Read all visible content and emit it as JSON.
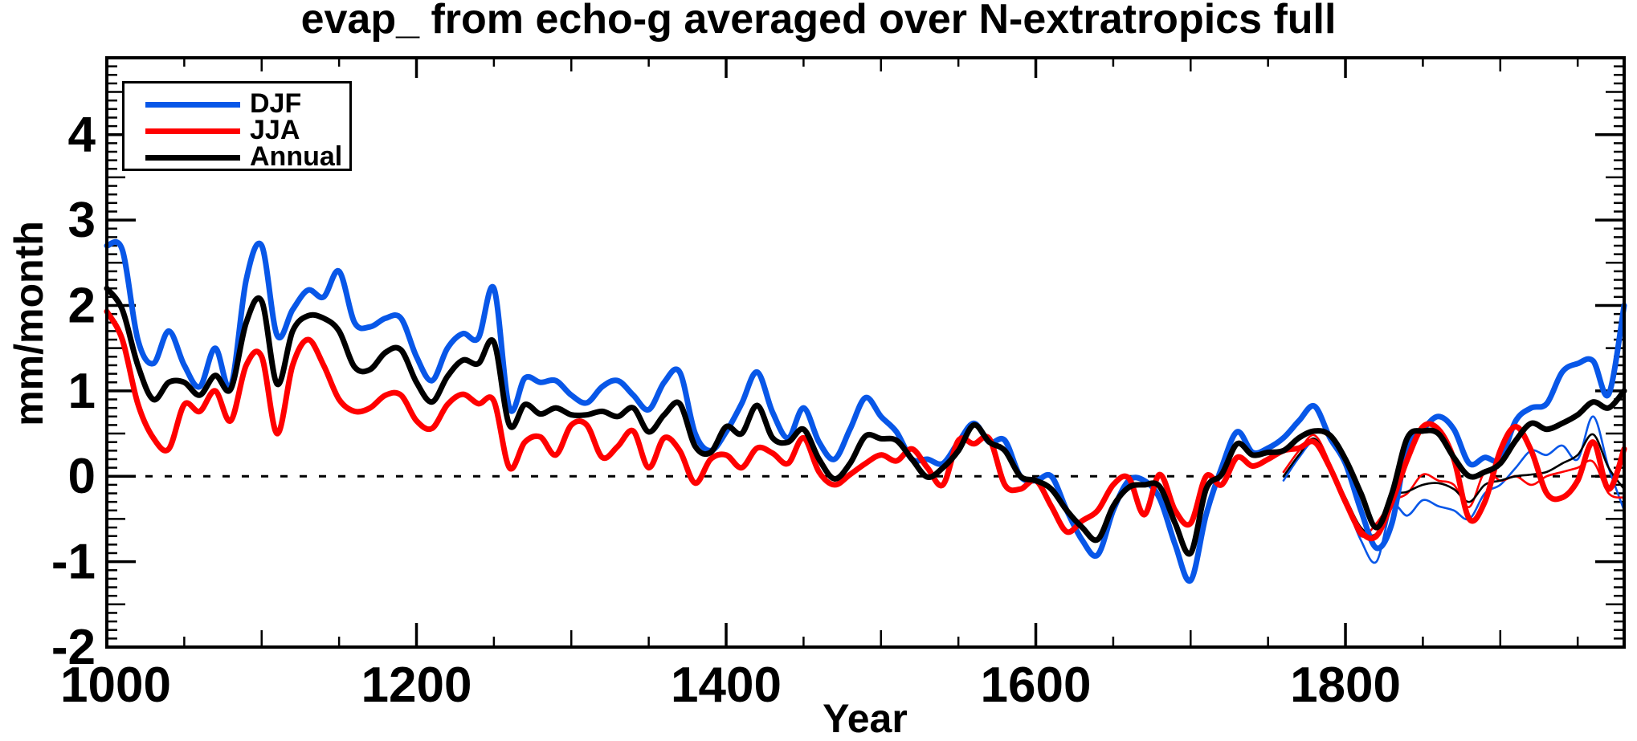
{
  "title": "evap_ from echo-g averaged over N-extratropics full",
  "colors": {
    "djf": "#0857e8",
    "jja": "#ff0000",
    "annual": "#000000",
    "frame": "#000000",
    "background": "#ffffff"
  },
  "legend": {
    "items": [
      {
        "label": "DJF",
        "color": "#0857e8"
      },
      {
        "label": "JJA",
        "color": "#ff0000"
      },
      {
        "label": "Annual",
        "color": "#000000"
      }
    ]
  },
  "chart_data": {
    "type": "line",
    "title": "evap_ from echo-g averaged over N-extratropics full",
    "xlabel": "Year",
    "ylabel": "mm/month",
    "xlim": [
      1000,
      1980
    ],
    "ylim": [
      -2,
      4.9
    ],
    "x_major_ticks": [
      1000,
      1200,
      1400,
      1600,
      1800
    ],
    "x_tick_labels": [
      "1000",
      "1200",
      "1400",
      "1600",
      "1800"
    ],
    "x_minor_step": 50,
    "y_major_ticks": [
      -2,
      -1,
      0,
      1,
      2,
      3,
      4
    ],
    "y_tick_labels": [
      "-2",
      "-1",
      "0",
      "1",
      "2",
      "3",
      "4"
    ],
    "y_minor_step": 0.1,
    "zero_line_dashed": true,
    "grid": "off",
    "legend_position": "top-left",
    "series": [
      {
        "name": "DJF",
        "color": "#0857e8",
        "line": "thick",
        "start_year": 1000,
        "step": 10,
        "values": [
          2.7,
          2.65,
          1.6,
          1.32,
          1.7,
          1.3,
          1.05,
          1.5,
          1.05,
          2.3,
          2.7,
          1.65,
          1.95,
          2.18,
          2.1,
          2.4,
          1.8,
          1.75,
          1.85,
          1.85,
          1.4,
          1.12,
          1.5,
          1.67,
          1.62,
          2.2,
          0.8,
          1.15,
          1.1,
          1.12,
          0.95,
          0.86,
          1.05,
          1.12,
          0.95,
          0.78,
          1.1,
          1.22,
          0.5,
          0.3,
          0.52,
          0.85,
          1.22,
          0.75,
          0.45,
          0.8,
          0.4,
          0.2,
          0.55,
          0.92,
          0.7,
          0.52,
          0.2,
          0.2,
          0.15,
          0.4,
          0.62,
          0.4,
          0.42,
          0.0,
          -0.05,
          0.0,
          -0.4,
          -0.75,
          -0.92,
          -0.4,
          -0.05,
          -0.05,
          -0.26,
          -0.8,
          -1.22,
          -0.45,
          0.1,
          0.52,
          0.28,
          0.33,
          0.45,
          0.65,
          0.82,
          0.45,
          0.15,
          -0.4,
          -0.84,
          -0.55,
          0.35,
          0.55,
          0.7,
          0.55,
          0.15,
          0.22,
          0.2,
          0.65,
          0.8,
          0.85,
          1.22,
          1.32,
          1.35,
          0.96,
          2.0
        ]
      },
      {
        "name": "JJA",
        "color": "#ff0000",
        "line": "thick",
        "start_year": 1000,
        "step": 10,
        "values": [
          1.93,
          1.6,
          0.85,
          0.45,
          0.32,
          0.84,
          0.76,
          1.0,
          0.65,
          1.3,
          1.4,
          0.5,
          1.3,
          1.6,
          1.3,
          0.9,
          0.76,
          0.8,
          0.95,
          0.95,
          0.65,
          0.56,
          0.84,
          0.96,
          0.85,
          0.88,
          0.1,
          0.4,
          0.46,
          0.25,
          0.6,
          0.6,
          0.22,
          0.35,
          0.53,
          0.1,
          0.45,
          0.3,
          -0.08,
          0.2,
          0.25,
          0.1,
          0.33,
          0.27,
          0.15,
          0.45,
          0.05,
          -0.1,
          0.02,
          0.15,
          0.25,
          0.18,
          0.32,
          0.1,
          -0.1,
          0.42,
          0.38,
          0.44,
          -0.1,
          -0.15,
          -0.05,
          -0.35,
          -0.65,
          -0.52,
          -0.4,
          -0.1,
          -0.02,
          -0.45,
          0.02,
          -0.4,
          -0.55,
          0.0,
          -0.1,
          0.22,
          0.12,
          0.2,
          0.3,
          0.33,
          0.4,
          0.1,
          -0.3,
          -0.65,
          -0.7,
          -0.3,
          0.2,
          0.58,
          0.55,
          0.2,
          -0.5,
          -0.3,
          0.3,
          0.58,
          0.3,
          -0.2,
          -0.25,
          -0.05,
          0.4,
          -0.15,
          0.32
        ]
      },
      {
        "name": "Annual",
        "color": "#000000",
        "line": "thick",
        "start_year": 1000,
        "step": 10,
        "values": [
          2.2,
          1.95,
          1.3,
          0.9,
          1.1,
          1.1,
          0.95,
          1.18,
          1.02,
          1.8,
          2.05,
          1.08,
          1.7,
          1.88,
          1.85,
          1.7,
          1.28,
          1.25,
          1.45,
          1.48,
          1.1,
          0.87,
          1.17,
          1.36,
          1.32,
          1.57,
          0.6,
          0.84,
          0.73,
          0.8,
          0.72,
          0.72,
          0.76,
          0.7,
          0.8,
          0.52,
          0.72,
          0.85,
          0.35,
          0.28,
          0.58,
          0.5,
          0.83,
          0.45,
          0.4,
          0.55,
          0.2,
          -0.03,
          0.15,
          0.47,
          0.44,
          0.42,
          0.2,
          -0.01,
          0.1,
          0.3,
          0.6,
          0.4,
          0.3,
          0.0,
          -0.05,
          -0.15,
          -0.4,
          -0.6,
          -0.74,
          -0.35,
          -0.13,
          -0.1,
          -0.12,
          -0.55,
          -0.9,
          -0.15,
          0.02,
          0.38,
          0.25,
          0.28,
          0.3,
          0.45,
          0.53,
          0.48,
          0.2,
          -0.2,
          -0.6,
          -0.2,
          0.45,
          0.53,
          0.5,
          0.22,
          0.0,
          0.05,
          0.15,
          0.42,
          0.62,
          0.55,
          0.62,
          0.72,
          0.87,
          0.8,
          1.0
        ]
      },
      {
        "name": "DJF thin (unlabeled late-period run)",
        "color": "#0857e8",
        "line": "thin",
        "start_year": 1760,
        "step": 10,
        "values": [
          -0.05,
          0.22,
          0.4,
          0.1,
          -0.3,
          -0.75,
          -1.0,
          -0.36,
          -0.46,
          -0.28,
          -0.35,
          -0.4,
          -0.5,
          -0.2,
          -0.1,
          0.1,
          0.3,
          0.25,
          0.36,
          0.2,
          0.7,
          0.1,
          -0.4
        ]
      },
      {
        "name": "JJA thin (unlabeled late-period run)",
        "color": "#ff0000",
        "line": "thin",
        "start_year": 1760,
        "step": 10,
        "values": [
          0.05,
          0.3,
          0.48,
          0.15,
          -0.3,
          -0.7,
          -0.55,
          -0.3,
          -0.2,
          0.02,
          -0.05,
          -0.1,
          -0.36,
          0.05,
          -0.05,
          0.0,
          -0.1,
          0.0,
          0.05,
          0.1,
          0.17,
          -0.2,
          -0.25
        ]
      },
      {
        "name": "Annual thin (unlabeled late-period run)",
        "color": "#000000",
        "line": "thin",
        "start_year": 1760,
        "step": 10,
        "values": [
          0.0,
          0.25,
          0.44,
          0.12,
          -0.25,
          -0.6,
          -0.67,
          -0.25,
          -0.18,
          -0.1,
          -0.08,
          -0.15,
          -0.3,
          -0.1,
          -0.05,
          0.0,
          0.02,
          0.05,
          0.15,
          0.25,
          0.49,
          0.1,
          -0.15
        ]
      }
    ]
  },
  "axes": {
    "x_label": "Year",
    "y_label": "mm/month"
  }
}
